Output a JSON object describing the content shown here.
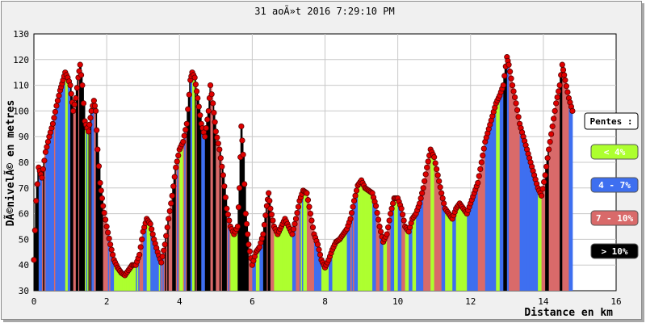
{
  "chart_data": {
    "type": "area",
    "title": "31 aoÃ»t 2016 7:29:10 PM",
    "xlabel": "Distance en km",
    "ylabel": "DÃ©nivelÃ© en metres",
    "xlim": [
      0,
      16
    ],
    "ylim": [
      30,
      130
    ],
    "x_ticks": [
      "0",
      "2",
      "4",
      "6",
      "8",
      "10",
      "12",
      "14",
      "16"
    ],
    "y_ticks": [
      "30",
      "40",
      "50",
      "60",
      "70",
      "80",
      "90",
      "100",
      "110",
      "120",
      "130"
    ],
    "grid": true,
    "legend_title": "Pentes :",
    "legend": [
      {
        "label": "< 4%",
        "color": "#adff2f",
        "text_color": "#ffffff"
      },
      {
        "label": "4 - 7%",
        "color": "#3e6ff0",
        "text_color": "#ffffff"
      },
      {
        "label": "7 - 10%",
        "color": "#d96a6a",
        "text_color": "#ffffff"
      },
      {
        "label": "> 10%",
        "color": "#000000",
        "text_color": "#ffffff"
      }
    ],
    "legend_position": "right",
    "marker_color": "#e00000",
    "profile": [
      [
        0.0,
        42
      ],
      [
        0.06,
        65
      ],
      [
        0.13,
        78
      ],
      [
        0.22,
        74
      ],
      [
        0.32,
        84
      ],
      [
        0.42,
        90
      ],
      [
        0.52,
        95
      ],
      [
        0.62,
        102
      ],
      [
        0.72,
        108
      ],
      [
        0.8,
        112
      ],
      [
        0.86,
        115
      ],
      [
        0.93,
        113
      ],
      [
        1.0,
        110
      ],
      [
        1.08,
        100
      ],
      [
        1.15,
        105
      ],
      [
        1.22,
        113
      ],
      [
        1.27,
        118
      ],
      [
        1.33,
        110
      ],
      [
        1.4,
        96
      ],
      [
        1.5,
        92
      ],
      [
        1.58,
        100
      ],
      [
        1.65,
        104
      ],
      [
        1.7,
        100
      ],
      [
        1.75,
        85
      ],
      [
        1.82,
        72
      ],
      [
        1.9,
        63
      ],
      [
        2.0,
        55
      ],
      [
        2.1,
        48
      ],
      [
        2.2,
        42
      ],
      [
        2.3,
        39
      ],
      [
        2.4,
        37
      ],
      [
        2.5,
        36
      ],
      [
        2.6,
        38
      ],
      [
        2.7,
        40
      ],
      [
        2.8,
        40
      ],
      [
        2.9,
        44
      ],
      [
        3.0,
        53
      ],
      [
        3.1,
        58
      ],
      [
        3.2,
        56
      ],
      [
        3.3,
        50
      ],
      [
        3.4,
        45
      ],
      [
        3.5,
        41
      ],
      [
        3.6,
        48
      ],
      [
        3.7,
        58
      ],
      [
        3.8,
        67
      ],
      [
        3.9,
        78
      ],
      [
        4.0,
        85
      ],
      [
        4.1,
        88
      ],
      [
        4.2,
        95
      ],
      [
        4.3,
        112
      ],
      [
        4.35,
        115
      ],
      [
        4.42,
        113
      ],
      [
        4.5,
        105
      ],
      [
        4.6,
        95
      ],
      [
        4.7,
        90
      ],
      [
        4.8,
        100
      ],
      [
        4.85,
        110
      ],
      [
        4.92,
        103
      ],
      [
        5.0,
        92
      ],
      [
        5.1,
        85
      ],
      [
        5.2,
        75
      ],
      [
        5.3,
        62
      ],
      [
        5.4,
        55
      ],
      [
        5.5,
        52
      ],
      [
        5.6,
        55
      ],
      [
        5.65,
        70
      ],
      [
        5.7,
        94
      ],
      [
        5.75,
        83
      ],
      [
        5.82,
        60
      ],
      [
        5.9,
        48
      ],
      [
        6.0,
        40
      ],
      [
        6.1,
        45
      ],
      [
        6.2,
        47
      ],
      [
        6.3,
        52
      ],
      [
        6.4,
        63
      ],
      [
        6.45,
        68
      ],
      [
        6.5,
        62
      ],
      [
        6.6,
        55
      ],
      [
        6.7,
        52
      ],
      [
        6.8,
        55
      ],
      [
        6.9,
        58
      ],
      [
        7.0,
        55
      ],
      [
        7.1,
        52
      ],
      [
        7.2,
        58
      ],
      [
        7.3,
        65
      ],
      [
        7.4,
        69
      ],
      [
        7.5,
        68
      ],
      [
        7.6,
        60
      ],
      [
        7.7,
        52
      ],
      [
        7.8,
        48
      ],
      [
        7.9,
        42
      ],
      [
        8.0,
        39
      ],
      [
        8.1,
        42
      ],
      [
        8.2,
        46
      ],
      [
        8.3,
        49
      ],
      [
        8.4,
        50
      ],
      [
        8.5,
        52
      ],
      [
        8.6,
        54
      ],
      [
        8.7,
        58
      ],
      [
        8.8,
        65
      ],
      [
        8.9,
        71
      ],
      [
        9.0,
        73
      ],
      [
        9.1,
        70
      ],
      [
        9.2,
        69
      ],
      [
        9.3,
        68
      ],
      [
        9.4,
        63
      ],
      [
        9.5,
        55
      ],
      [
        9.6,
        49
      ],
      [
        9.7,
        52
      ],
      [
        9.8,
        60
      ],
      [
        9.9,
        66
      ],
      [
        10.0,
        66
      ],
      [
        10.1,
        62
      ],
      [
        10.2,
        55
      ],
      [
        10.3,
        53
      ],
      [
        10.4,
        58
      ],
      [
        10.5,
        60
      ],
      [
        10.6,
        64
      ],
      [
        10.7,
        70
      ],
      [
        10.8,
        78
      ],
      [
        10.9,
        85
      ],
      [
        11.0,
        82
      ],
      [
        11.1,
        75
      ],
      [
        11.2,
        68
      ],
      [
        11.3,
        62
      ],
      [
        11.4,
        60
      ],
      [
        11.5,
        58
      ],
      [
        11.6,
        62
      ],
      [
        11.7,
        64
      ],
      [
        11.8,
        62
      ],
      [
        11.9,
        60
      ],
      [
        12.0,
        64
      ],
      [
        12.1,
        68
      ],
      [
        12.2,
        72
      ],
      [
        12.3,
        80
      ],
      [
        12.4,
        88
      ],
      [
        12.5,
        93
      ],
      [
        12.6,
        98
      ],
      [
        12.7,
        103
      ],
      [
        12.8,
        106
      ],
      [
        12.9,
        110
      ],
      [
        13.0,
        121
      ],
      [
        13.05,
        118
      ],
      [
        13.15,
        110
      ],
      [
        13.25,
        103
      ],
      [
        13.35,
        95
      ],
      [
        13.45,
        90
      ],
      [
        13.55,
        85
      ],
      [
        13.65,
        80
      ],
      [
        13.75,
        75
      ],
      [
        13.85,
        70
      ],
      [
        13.95,
        67
      ],
      [
        14.05,
        75
      ],
      [
        14.15,
        85
      ],
      [
        14.25,
        94
      ],
      [
        14.35,
        103
      ],
      [
        14.45,
        110
      ],
      [
        14.52,
        118
      ],
      [
        14.6,
        112
      ],
      [
        14.7,
        105
      ],
      [
        14.8,
        100
      ]
    ]
  }
}
